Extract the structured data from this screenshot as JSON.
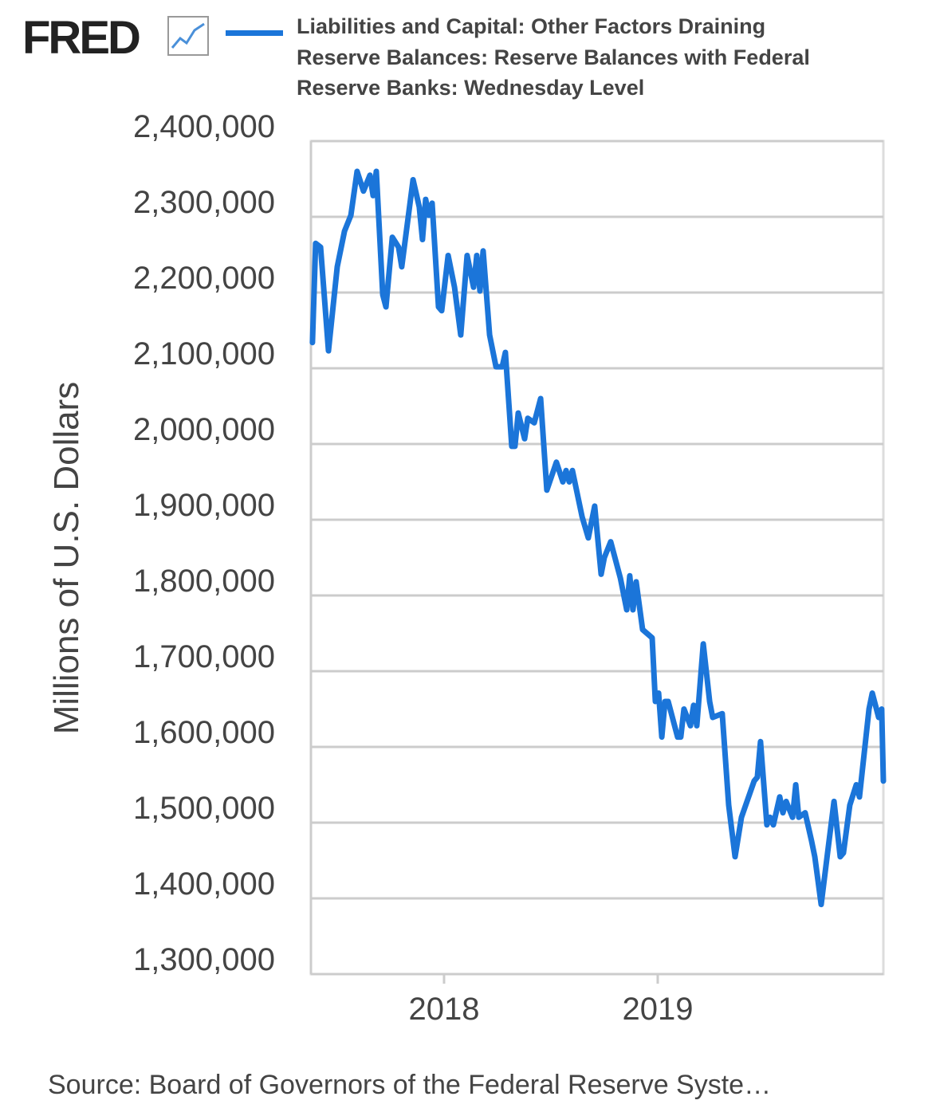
{
  "chart_data": {
    "type": "line",
    "logo": "FRED",
    "title": "Liabilities and Capital: Other Factors Draining Reserve Balances: Reserve Balances with Federal Reserve Banks: Wednesday Level",
    "ylabel": "Millions of U.S. Dollars",
    "source": "Source: Board of Governors of the Federal Reserve Syste…",
    "xlim": [
      2017.377,
      2020.056
    ],
    "xticks": [
      2018,
      2019
    ],
    "ylim": [
      1300000,
      2400000
    ],
    "yticks": [
      {
        "value": 1300000,
        "label": "1,300,000"
      },
      {
        "value": 1400000,
        "label": "1,400,000"
      },
      {
        "value": 1500000,
        "label": "1,500,000"
      },
      {
        "value": 1600000,
        "label": "1,600,000"
      },
      {
        "value": 1700000,
        "label": "1,700,000"
      },
      {
        "value": 1800000,
        "label": "1,800,000"
      },
      {
        "value": 1900000,
        "label": "1,900,000"
      },
      {
        "value": 2000000,
        "label": "2,000,000"
      },
      {
        "value": 2100000,
        "label": "2,100,000"
      },
      {
        "value": 2200000,
        "label": "2,200,000"
      },
      {
        "value": 2300000,
        "label": "2,300,000"
      },
      {
        "value": 2400000,
        "label": "2,400,000"
      }
    ],
    "grid": true,
    "x": [
      2017.384,
      2017.399,
      2017.422,
      2017.459,
      2017.5,
      2017.534,
      2017.564,
      2017.593,
      2017.623,
      2017.653,
      2017.668,
      2017.683,
      2017.713,
      2017.728,
      2017.758,
      2017.787,
      2017.802,
      2017.855,
      2017.884,
      2017.899,
      2017.914,
      2017.929,
      2017.944,
      2017.974,
      2017.989,
      2018.019,
      2018.049,
      2018.078,
      2018.108,
      2018.138,
      2018.153,
      2018.168,
      2018.183,
      2018.213,
      2018.243,
      2018.272,
      2018.287,
      2018.317,
      2018.332,
      2018.347,
      2018.377,
      2018.392,
      2018.422,
      2018.452,
      2018.481,
      2018.526,
      2018.556,
      2018.571,
      2018.586,
      2018.601,
      2018.646,
      2018.675,
      2018.705,
      2018.735,
      2018.75,
      2018.78,
      2018.825,
      2018.855,
      2018.869,
      2018.884,
      2018.899,
      2018.929,
      2018.974,
      2018.989,
      2019.004,
      2019.019,
      2019.034,
      2019.049,
      2019.093,
      2019.108,
      2019.123,
      2019.153,
      2019.168,
      2019.183,
      2019.213,
      2019.243,
      2019.257,
      2019.302,
      2019.332,
      2019.362,
      2019.392,
      2019.451,
      2019.466,
      2019.481,
      2019.511,
      2019.526,
      2019.541,
      2019.571,
      2019.586,
      2019.601,
      2019.631,
      2019.646,
      2019.66,
      2019.69,
      2019.72,
      2019.735,
      2019.765,
      2019.795,
      2019.825,
      2019.854,
      2019.869,
      2019.899,
      2019.929,
      2019.944,
      2019.989,
      2020.004,
      2020.034,
      2020.048,
      2020.056
    ],
    "series": [
      {
        "name": "Liabilities and Capital: Other Factors Draining Reserve Balances: Reserve Balances with Federal Reserve Banks: Wednesday Level",
        "color": "#1b75d9",
        "values": [
          2134000,
          2265000,
          2260000,
          2123000,
          2234000,
          2281000,
          2302000,
          2360000,
          2334000,
          2355000,
          2328000,
          2360000,
          2197000,
          2181000,
          2273000,
          2260000,
          2234000,
          2349000,
          2313000,
          2270000,
          2323000,
          2302000,
          2318000,
          2181000,
          2176000,
          2249000,
          2207000,
          2144000,
          2249000,
          2207000,
          2249000,
          2202000,
          2255000,
          2144000,
          2102000,
          2102000,
          2121000,
          1997000,
          1997000,
          2041000,
          2007000,
          2034000,
          2028000,
          2060000,
          1939000,
          1976000,
          1950000,
          1965000,
          1950000,
          1965000,
          1904000,
          1876000,
          1918000,
          1828000,
          1850000,
          1871000,
          1823000,
          1781000,
          1826000,
          1781000,
          1818000,
          1755000,
          1744000,
          1660000,
          1671000,
          1613000,
          1660000,
          1660000,
          1613000,
          1613000,
          1650000,
          1628000,
          1655000,
          1628000,
          1736000,
          1660000,
          1639000,
          1644000,
          1523000,
          1455000,
          1507000,
          1555000,
          1560000,
          1607000,
          1497000,
          1507000,
          1497000,
          1534000,
          1513000,
          1528000,
          1507000,
          1550000,
          1507000,
          1513000,
          1476000,
          1455000,
          1392000,
          1460000,
          1528000,
          1455000,
          1460000,
          1523000,
          1550000,
          1534000,
          1650000,
          1671000,
          1639000,
          1650000,
          1555000
        ]
      }
    ]
  }
}
